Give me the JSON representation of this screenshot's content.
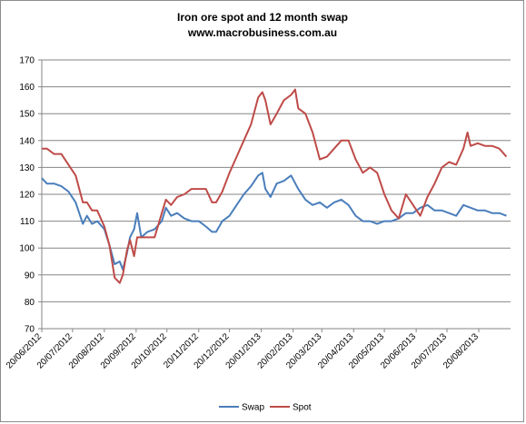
{
  "chart_data": {
    "type": "line",
    "title": "Iron ore spot and 12 month swap",
    "subtitle": "www.macrobusiness.com.au",
    "xlabel": "",
    "ylabel": "",
    "ylim": [
      70,
      170
    ],
    "yticks": [
      70,
      80,
      90,
      100,
      110,
      120,
      130,
      140,
      150,
      160,
      170
    ],
    "grid": "horizontal",
    "legend_position": "bottom",
    "xlim": [
      "2012-06-20",
      "2013-09-20"
    ],
    "x_tick_labels": [
      "20/06/2012",
      "20/07/2012",
      "20/08/2012",
      "20/09/2012",
      "20/10/2012",
      "20/11/2012",
      "20/12/2012",
      "20/01/2013",
      "20/02/2013",
      "20/03/2013",
      "20/04/2013",
      "20/05/2013",
      "20/06/2013",
      "20/07/2013",
      "20/08/2013"
    ],
    "x_tick_dates": [
      "2012-06-20",
      "2012-07-20",
      "2012-08-20",
      "2012-09-20",
      "2012-10-20",
      "2012-11-20",
      "2012-12-20",
      "2013-01-20",
      "2013-02-20",
      "2013-03-20",
      "2013-04-20",
      "2013-05-20",
      "2013-06-20",
      "2013-07-20",
      "2013-08-20"
    ],
    "series": [
      {
        "name": "Swap",
        "color": "#4a7ebb",
        "points": [
          [
            "2012-06-20",
            126
          ],
          [
            "2012-06-25",
            124
          ],
          [
            "2012-07-02",
            124
          ],
          [
            "2012-07-09",
            123
          ],
          [
            "2012-07-16",
            121
          ],
          [
            "2012-07-23",
            117
          ],
          [
            "2012-07-30",
            109
          ],
          [
            "2012-08-03",
            112
          ],
          [
            "2012-08-08",
            109
          ],
          [
            "2012-08-13",
            110
          ],
          [
            "2012-08-20",
            107
          ],
          [
            "2012-08-25",
            101
          ],
          [
            "2012-08-30",
            94
          ],
          [
            "2012-09-04",
            95
          ],
          [
            "2012-09-07",
            92
          ],
          [
            "2012-09-11",
            98
          ],
          [
            "2012-09-14",
            104
          ],
          [
            "2012-09-18",
            107
          ],
          [
            "2012-09-21",
            113
          ],
          [
            "2012-09-25",
            104
          ],
          [
            "2012-10-01",
            106
          ],
          [
            "2012-10-08",
            107
          ],
          [
            "2012-10-15",
            110
          ],
          [
            "2012-10-19",
            115
          ],
          [
            "2012-10-24",
            112
          ],
          [
            "2012-10-30",
            113
          ],
          [
            "2012-11-06",
            111
          ],
          [
            "2012-11-13",
            110
          ],
          [
            "2012-11-20",
            110
          ],
          [
            "2012-11-27",
            108
          ],
          [
            "2012-12-03",
            106
          ],
          [
            "2012-12-07",
            106
          ],
          [
            "2012-12-13",
            110
          ],
          [
            "2012-12-20",
            112
          ],
          [
            "2012-12-27",
            116
          ],
          [
            "2013-01-03",
            120
          ],
          [
            "2013-01-10",
            123
          ],
          [
            "2013-01-17",
            127
          ],
          [
            "2013-01-21",
            128
          ],
          [
            "2013-01-24",
            122
          ],
          [
            "2013-01-29",
            119
          ],
          [
            "2013-02-04",
            124
          ],
          [
            "2013-02-11",
            125
          ],
          [
            "2013-02-18",
            127
          ],
          [
            "2013-02-25",
            122
          ],
          [
            "2013-03-04",
            118
          ],
          [
            "2013-03-11",
            116
          ],
          [
            "2013-03-18",
            117
          ],
          [
            "2013-03-25",
            115
          ],
          [
            "2013-04-01",
            117
          ],
          [
            "2013-04-08",
            118
          ],
          [
            "2013-04-15",
            116
          ],
          [
            "2013-04-22",
            112
          ],
          [
            "2013-04-29",
            110
          ],
          [
            "2013-05-06",
            110
          ],
          [
            "2013-05-13",
            109
          ],
          [
            "2013-05-20",
            110
          ],
          [
            "2013-05-27",
            110
          ],
          [
            "2013-06-03",
            111
          ],
          [
            "2013-06-10",
            113
          ],
          [
            "2013-06-17",
            113
          ],
          [
            "2013-06-24",
            115
          ],
          [
            "2013-07-01",
            116
          ],
          [
            "2013-07-08",
            114
          ],
          [
            "2013-07-15",
            114
          ],
          [
            "2013-07-22",
            113
          ],
          [
            "2013-07-29",
            112
          ],
          [
            "2013-08-05",
            116
          ],
          [
            "2013-08-12",
            115
          ],
          [
            "2013-08-19",
            114
          ],
          [
            "2013-08-26",
            114
          ],
          [
            "2013-09-02",
            113
          ],
          [
            "2013-09-09",
            113
          ],
          [
            "2013-09-16",
            112
          ]
        ]
      },
      {
        "name": "Spot",
        "color": "#be4b48",
        "points": [
          [
            "2012-06-20",
            137
          ],
          [
            "2012-06-25",
            137
          ],
          [
            "2012-07-02",
            135
          ],
          [
            "2012-07-09",
            135
          ],
          [
            "2012-07-16",
            131
          ],
          [
            "2012-07-23",
            127
          ],
          [
            "2012-07-30",
            117
          ],
          [
            "2012-08-03",
            117
          ],
          [
            "2012-08-08",
            114
          ],
          [
            "2012-08-13",
            114
          ],
          [
            "2012-08-20",
            108
          ],
          [
            "2012-08-25",
            101
          ],
          [
            "2012-08-30",
            89
          ],
          [
            "2012-09-04",
            87
          ],
          [
            "2012-09-07",
            90
          ],
          [
            "2012-09-11",
            99
          ],
          [
            "2012-09-14",
            103
          ],
          [
            "2012-09-18",
            97
          ],
          [
            "2012-09-21",
            104
          ],
          [
            "2012-09-25",
            104
          ],
          [
            "2012-10-01",
            104
          ],
          [
            "2012-10-08",
            104
          ],
          [
            "2012-10-15",
            113
          ],
          [
            "2012-10-19",
            118
          ],
          [
            "2012-10-24",
            116
          ],
          [
            "2012-10-30",
            119
          ],
          [
            "2012-11-06",
            120
          ],
          [
            "2012-11-13",
            122
          ],
          [
            "2012-11-20",
            122
          ],
          [
            "2012-11-27",
            122
          ],
          [
            "2012-12-03",
            117
          ],
          [
            "2012-12-07",
            117
          ],
          [
            "2012-12-13",
            121
          ],
          [
            "2012-12-20",
            128
          ],
          [
            "2012-12-27",
            134
          ],
          [
            "2013-01-03",
            140
          ],
          [
            "2013-01-10",
            146
          ],
          [
            "2013-01-17",
            156
          ],
          [
            "2013-01-21",
            158
          ],
          [
            "2013-01-24",
            155
          ],
          [
            "2013-01-29",
            146
          ],
          [
            "2013-02-04",
            150
          ],
          [
            "2013-02-11",
            155
          ],
          [
            "2013-02-18",
            157
          ],
          [
            "2013-02-22",
            159
          ],
          [
            "2013-02-25",
            152
          ],
          [
            "2013-03-04",
            150
          ],
          [
            "2013-03-11",
            143
          ],
          [
            "2013-03-18",
            133
          ],
          [
            "2013-03-25",
            134
          ],
          [
            "2013-04-01",
            137
          ],
          [
            "2013-04-08",
            140
          ],
          [
            "2013-04-15",
            140
          ],
          [
            "2013-04-22",
            133
          ],
          [
            "2013-04-29",
            128
          ],
          [
            "2013-05-06",
            130
          ],
          [
            "2013-05-13",
            128
          ],
          [
            "2013-05-20",
            120
          ],
          [
            "2013-05-27",
            114
          ],
          [
            "2013-06-03",
            111
          ],
          [
            "2013-06-10",
            120
          ],
          [
            "2013-06-17",
            116
          ],
          [
            "2013-06-24",
            112
          ],
          [
            "2013-07-01",
            119
          ],
          [
            "2013-07-08",
            124
          ],
          [
            "2013-07-15",
            130
          ],
          [
            "2013-07-22",
            132
          ],
          [
            "2013-07-29",
            131
          ],
          [
            "2013-08-05",
            137
          ],
          [
            "2013-08-09",
            143
          ],
          [
            "2013-08-12",
            138
          ],
          [
            "2013-08-19",
            139
          ],
          [
            "2013-08-26",
            138
          ],
          [
            "2013-09-02",
            138
          ],
          [
            "2013-09-09",
            137
          ],
          [
            "2013-09-16",
            134
          ]
        ]
      }
    ]
  }
}
